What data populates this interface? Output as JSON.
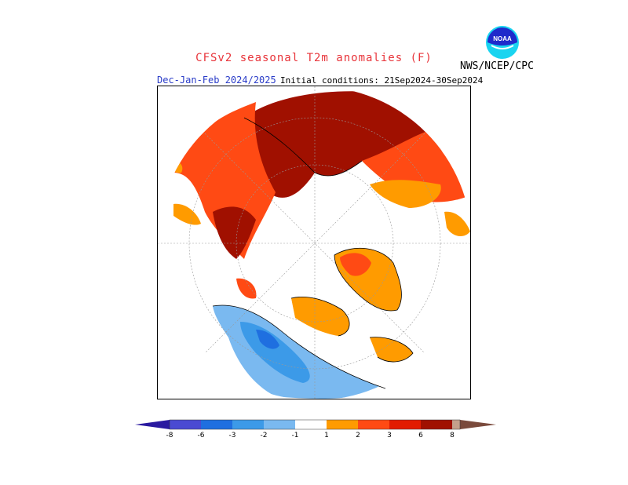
{
  "header": {
    "title": "CFSv2 seasonal T2m anomalies (F)",
    "season": "Dec-Jan-Feb 2024/2025",
    "initial_conditions": "Initial conditions: 21Sep2024-30Sep2024",
    "agency": "NWS/NCEP/CPC",
    "logo_text": "NOAA"
  },
  "legend": {
    "labels": [
      "-8",
      "-6",
      "-3",
      "-2",
      "-1",
      "1",
      "2",
      "3",
      "6",
      "8"
    ],
    "colors": [
      "#2a1aa0",
      "#4a4ad2",
      "#1f6fe0",
      "#3c9ae8",
      "#7ab9f0",
      "#ffffff",
      "#ff9b00",
      "#ff4a14",
      "#e21c00",
      "#a01000",
      "#c4a08c",
      "#7a4a3c"
    ]
  },
  "map": {
    "projection": "north polar stereographic",
    "warm_colors": {
      "one_to_two": "#ff9b00",
      "two_to_three": "#ff4a14",
      "three_to_six": "#a01000"
    },
    "cool_colors": {
      "minus_one_to_two": "#7ab9f0",
      "minus_two_to_three": "#3c9ae8",
      "minus_three_to_six": "#1f6fe0"
    }
  }
}
